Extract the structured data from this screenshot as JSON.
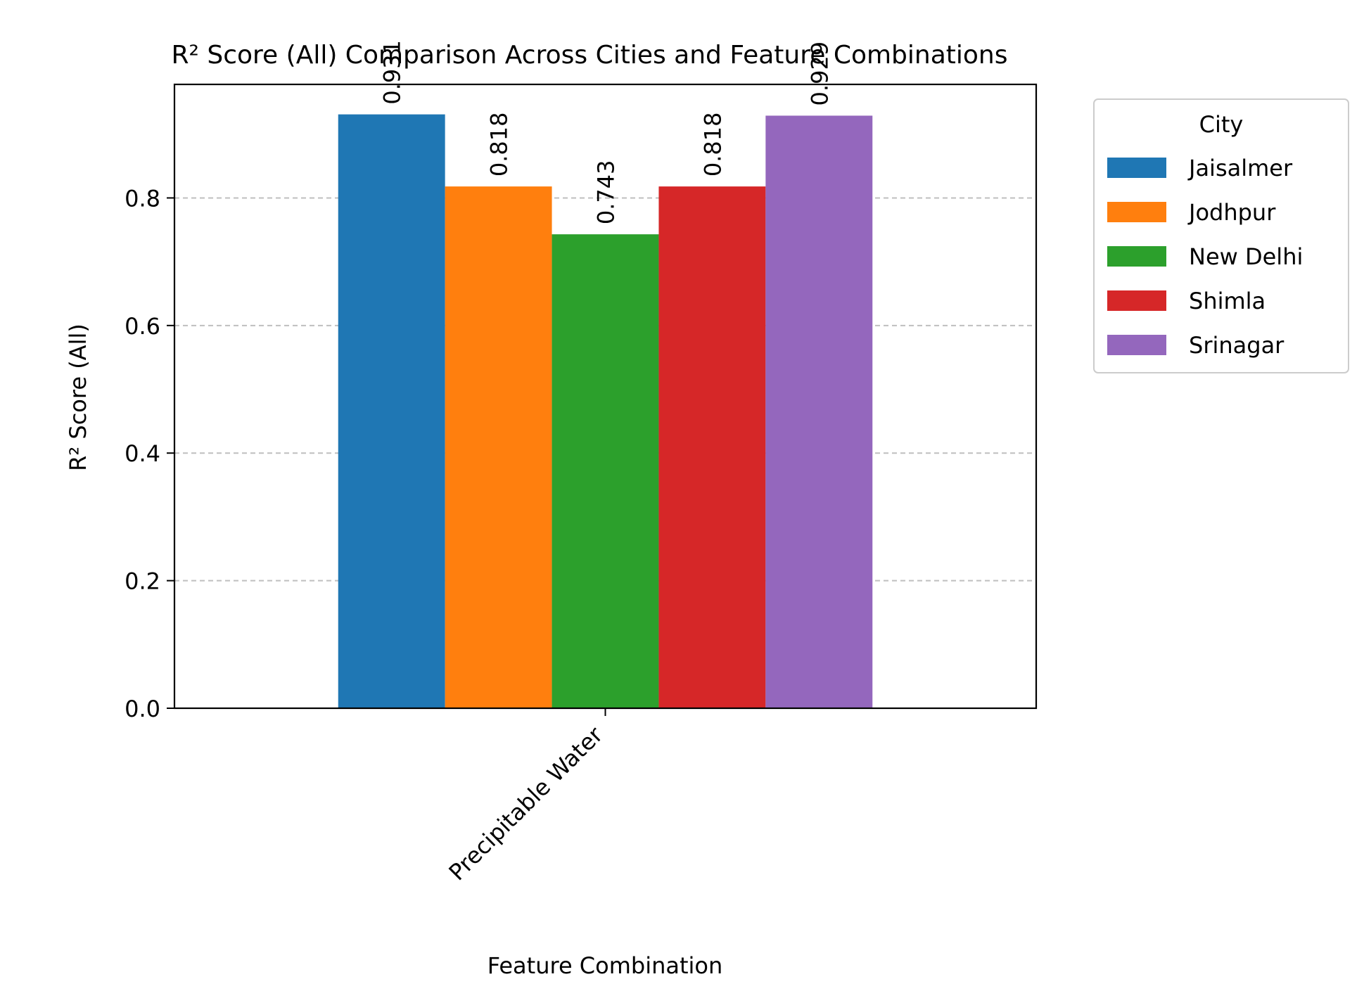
{
  "chart_data": {
    "type": "bar",
    "title": "R² Score (All) Comparison Across Cities and Feature Combinations",
    "xlabel": "Feature Combination",
    "ylabel": "R² Score (All)",
    "categories": [
      "Precipitable Water"
    ],
    "ylim": [
      0,
      0.978
    ],
    "yticks": [
      "0.0",
      "0.2",
      "0.4",
      "0.6",
      "0.8"
    ],
    "grid": "y-dashed",
    "legend_title": "City",
    "legend_position": "outside-top-right",
    "series": [
      {
        "name": "Jaisalmer",
        "values": [
          0.931
        ],
        "label": "0.931",
        "color": "#1f77b4"
      },
      {
        "name": "Jodhpur",
        "values": [
          0.818
        ],
        "label": "0.818",
        "color": "#ff7f0e"
      },
      {
        "name": "New Delhi",
        "values": [
          0.743
        ],
        "label": "0.743",
        "color": "#2ca02c"
      },
      {
        "name": "Shimla",
        "values": [
          0.818
        ],
        "label": "0.818",
        "color": "#d62728"
      },
      {
        "name": "Srinagar",
        "values": [
          0.929
        ],
        "label": "0.929",
        "color": "#9467bd"
      }
    ]
  }
}
